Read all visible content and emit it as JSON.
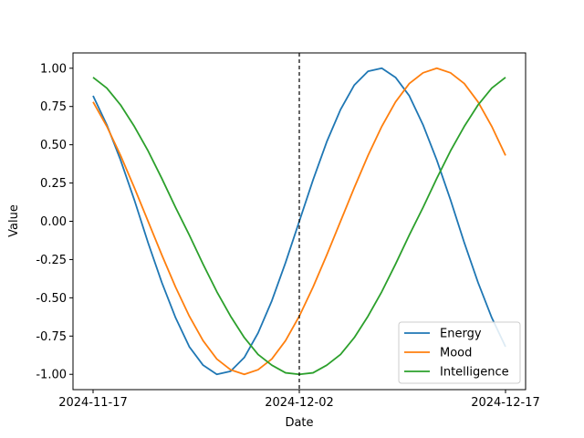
{
  "chart_data": {
    "type": "line",
    "title": "",
    "xlabel": "Date",
    "ylabel": "Value",
    "x": [
      "2024-11-17",
      "2024-11-18",
      "2024-11-19",
      "2024-11-20",
      "2024-11-21",
      "2024-11-22",
      "2024-11-23",
      "2024-11-24",
      "2024-11-25",
      "2024-11-26",
      "2024-11-27",
      "2024-11-28",
      "2024-11-29",
      "2024-11-30",
      "2024-12-01",
      "2024-12-02",
      "2024-12-03",
      "2024-12-04",
      "2024-12-05",
      "2024-12-06",
      "2024-12-07",
      "2024-12-08",
      "2024-12-09",
      "2024-12-10",
      "2024-12-11",
      "2024-12-12",
      "2024-12-13",
      "2024-12-14",
      "2024-12-15",
      "2024-12-16",
      "2024-12-17"
    ],
    "xticks": [
      "2024-11-17",
      "2024-12-02",
      "2024-12-17"
    ],
    "yticks": [
      "-1.00",
      "-0.75",
      "-0.50",
      "-0.25",
      "0.00",
      "0.25",
      "0.50",
      "0.75",
      "1.00"
    ],
    "ylim": [
      -1.1,
      1.1
    ],
    "vline": {
      "x": "2024-12-02",
      "style": "dashed",
      "color": "#000000"
    },
    "legend": {
      "position": "lower-right"
    },
    "grid": false,
    "series": [
      {
        "name": "Energy",
        "color": "#1f77b4",
        "values": [
          0.82,
          0.63,
          0.4,
          0.14,
          -0.14,
          -0.4,
          -0.63,
          -0.82,
          -0.94,
          -1.0,
          -0.98,
          -0.89,
          -0.73,
          -0.52,
          -0.27,
          0.0,
          0.27,
          0.52,
          0.73,
          0.89,
          0.98,
          1.0,
          0.94,
          0.82,
          0.63,
          0.4,
          0.14,
          -0.14,
          -0.4,
          -0.63,
          -0.82
        ]
      },
      {
        "name": "Mood",
        "color": "#ff7f0e",
        "values": [
          0.78,
          0.62,
          0.43,
          0.22,
          0.0,
          -0.22,
          -0.43,
          -0.62,
          -0.78,
          -0.9,
          -0.97,
          -1.0,
          -0.97,
          -0.9,
          -0.78,
          -0.62,
          -0.43,
          -0.22,
          0.0,
          0.22,
          0.43,
          0.62,
          0.78,
          0.9,
          0.97,
          1.0,
          0.97,
          0.9,
          0.78,
          0.62,
          0.43
        ]
      },
      {
        "name": "Intelligence",
        "color": "#2ca02c",
        "values": [
          0.94,
          0.87,
          0.76,
          0.62,
          0.46,
          0.28,
          0.09,
          -0.09,
          -0.28,
          -0.46,
          -0.62,
          -0.76,
          -0.87,
          -0.94,
          -0.99,
          -1.0,
          -0.99,
          -0.94,
          -0.87,
          -0.76,
          -0.62,
          -0.46,
          -0.28,
          -0.09,
          0.09,
          0.28,
          0.46,
          0.62,
          0.76,
          0.87,
          0.94
        ]
      }
    ]
  }
}
